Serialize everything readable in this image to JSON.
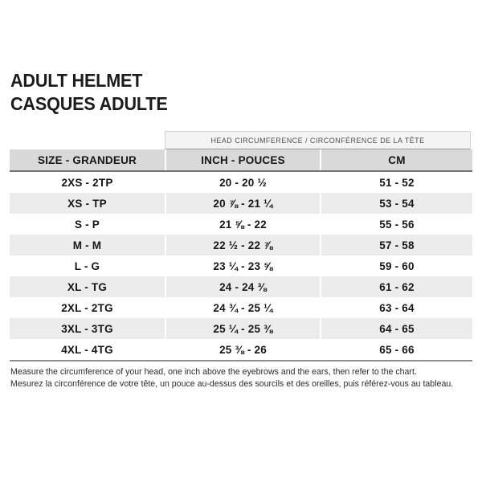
{
  "title": {
    "line1": "ADULT HELMET",
    "line2": "CASQUES ADULTE"
  },
  "table": {
    "banner": "HEAD CIRCUMFERENCE / CIRCONFÉRENCE DE LA TÊTE",
    "columns": [
      "SIZE - GRANDEUR",
      "INCH - POUCES",
      "CM"
    ],
    "rows": [
      {
        "size": "2XS - 2TP",
        "inch": "20 - 20 ½",
        "cm": "51 - 52"
      },
      {
        "size": "XS - TP",
        "inch": "20 ⅞ - 21 ¼",
        "cm": "53 - 54"
      },
      {
        "size": "S - P",
        "inch": "21 ⅝ - 22",
        "cm": "55 - 56"
      },
      {
        "size": "M - M",
        "inch": "22 ½ - 22 ⅞",
        "cm": "57 - 58"
      },
      {
        "size": "L - G",
        "inch": "23 ¼ - 23 ⅝",
        "cm": "59 - 60"
      },
      {
        "size": "XL - TG",
        "inch": "24 - 24 ⅜",
        "cm": "61 - 62"
      },
      {
        "size": "2XL - 2TG",
        "inch": "24 ¾ - 25 ¼",
        "cm": "63 - 64"
      },
      {
        "size": "3XL - 3TG",
        "inch": "25 ¼ - 25 ⅜",
        "cm": "64 - 65"
      },
      {
        "size": "4XL - 4TG",
        "inch": "25 ⅜ - 26",
        "cm": "65 - 66"
      }
    ]
  },
  "footer": {
    "line1": "Measure the circumference of your head, one inch above the eyebrows and the ears, then refer to the chart.",
    "line2": "Mesurez la circonférence de votre tête, un pouce au-dessus des sourcils et des oreilles, puis référez-vous au tableau."
  },
  "colors": {
    "header_bg": "#d9d9d9",
    "stripe_bg": "#ececec",
    "banner_bg": "#f4f4f4",
    "rule_dark": "#757575",
    "text": "#161616"
  }
}
